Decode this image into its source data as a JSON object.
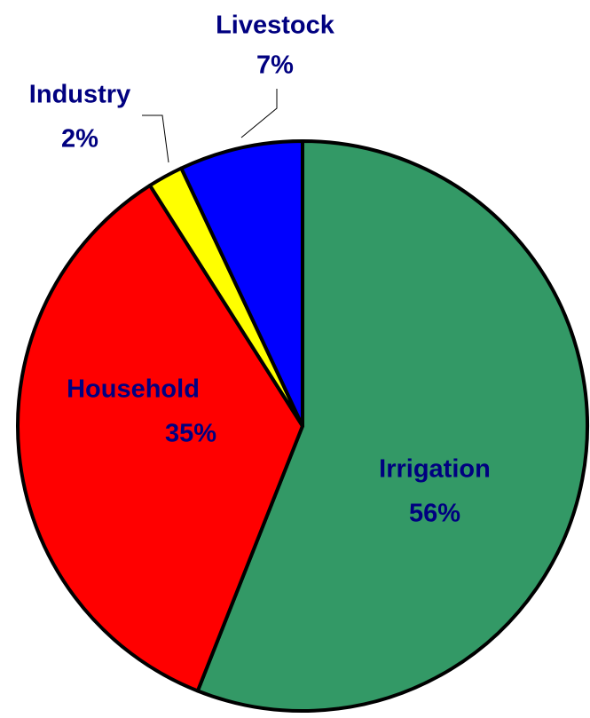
{
  "chart_data": {
    "type": "pie",
    "categories": [
      "Irrigation",
      "Household",
      "Industry",
      "Livestock"
    ],
    "values": [
      56,
      35,
      2,
      7
    ],
    "value_labels": [
      "56%",
      "35%",
      "2%",
      "7%"
    ],
    "colors": [
      "#339966",
      "#ff0000",
      "#ffff00",
      "#0000ff"
    ]
  }
}
